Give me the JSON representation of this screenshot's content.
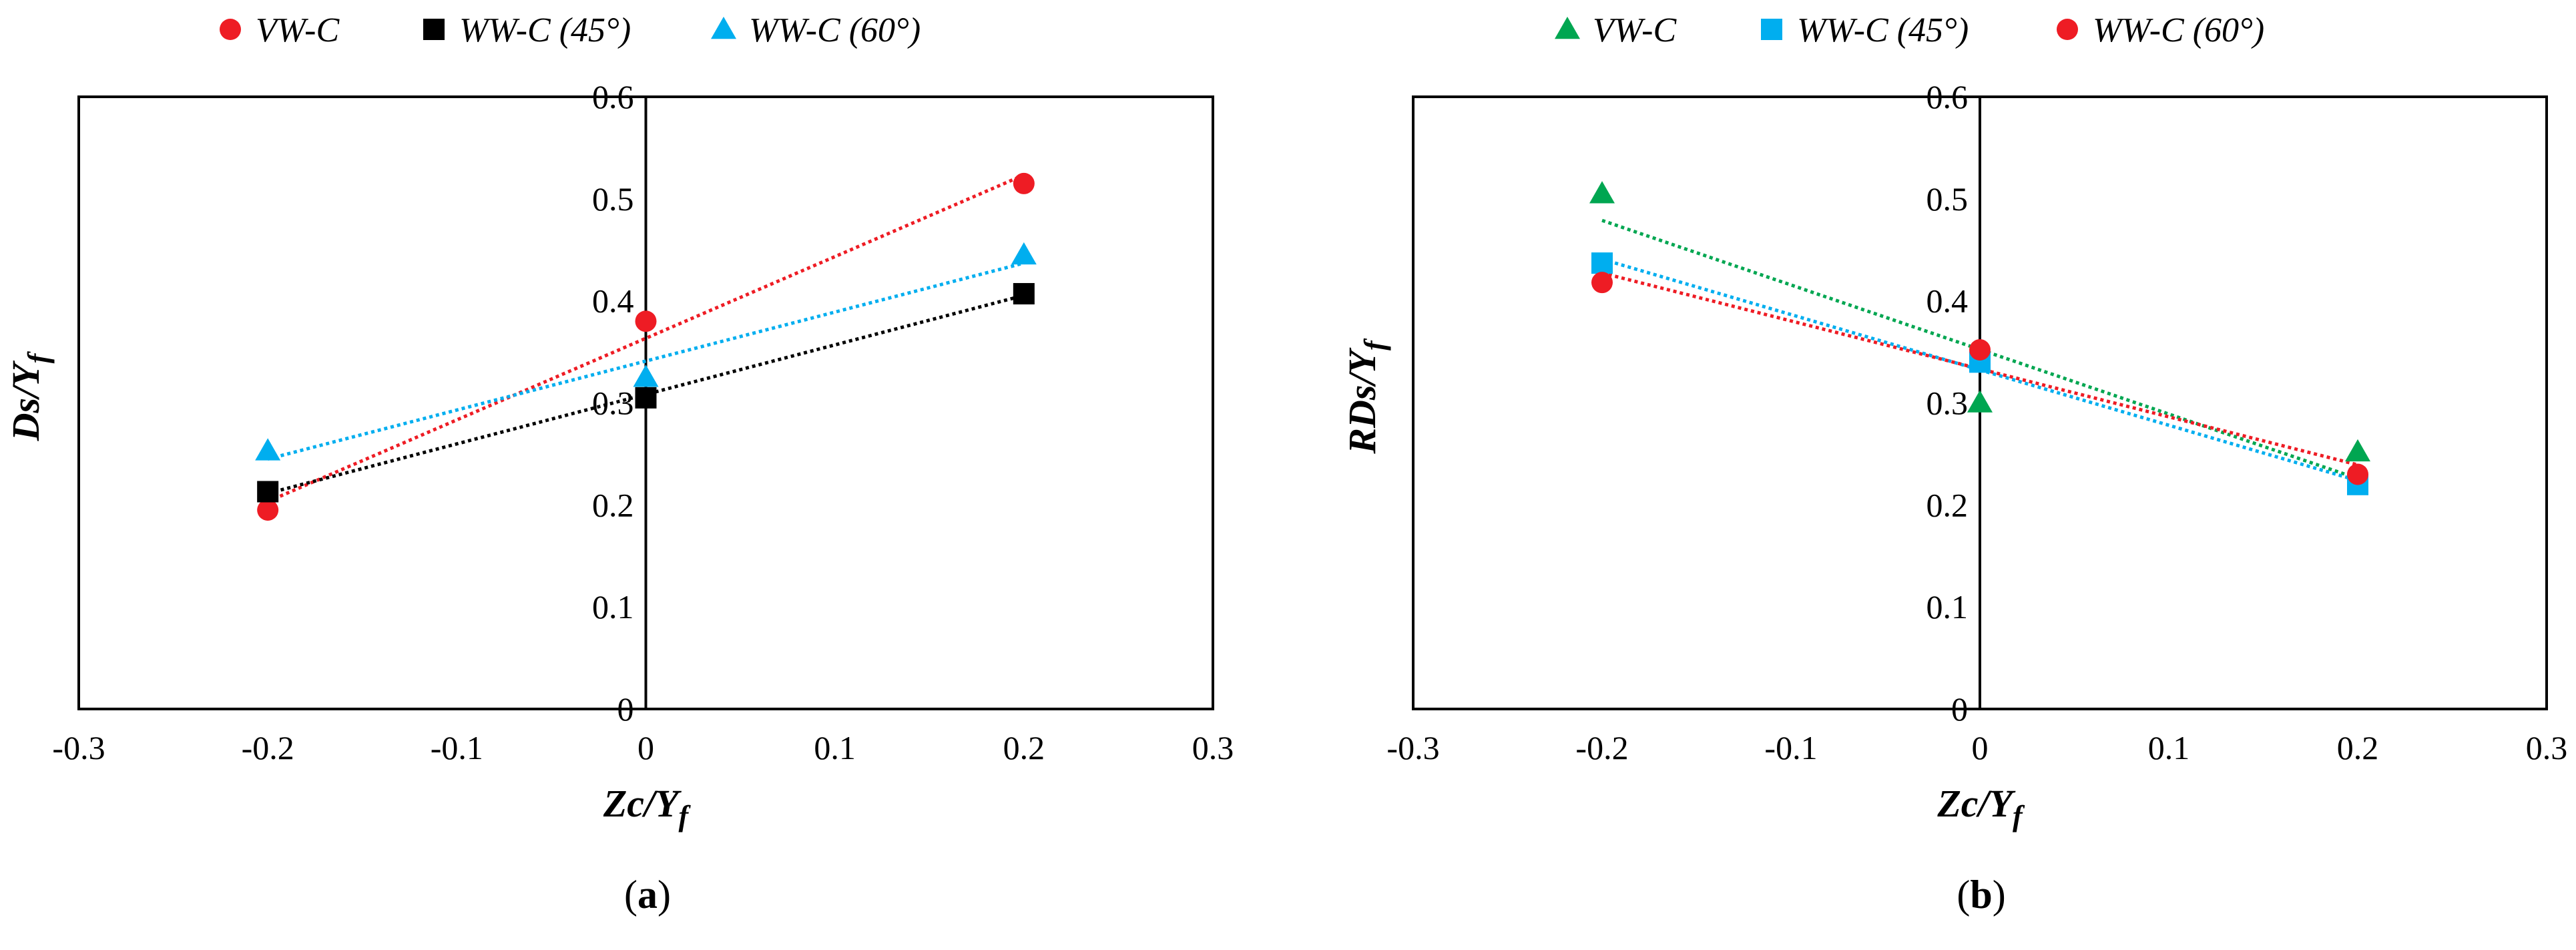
{
  "chart_data": [
    {
      "type": "scatter",
      "trendlines": "linear, dotted",
      "panel_label": {
        "open": "(",
        "letter": "a",
        "close": ")"
      },
      "xlabel": {
        "main": "Zc/Y",
        "sub": "f"
      },
      "ylabel": {
        "main": "Ds/Y",
        "sub": "f"
      },
      "xlim": [
        -0.3,
        0.3
      ],
      "ylim": [
        0,
        0.6
      ],
      "x_ticks": [
        "-0.3",
        "-0.2",
        "-0.1",
        "0",
        "0.1",
        "0.2",
        "0.3"
      ],
      "y_ticks": [
        "0",
        "0.1",
        "0.2",
        "0.3",
        "0.4",
        "0.5",
        "0.6"
      ],
      "legend_position": "top",
      "series": [
        {
          "name": "VW-C",
          "marker": "circle",
          "color": "#ee1c24",
          "x": [
            -0.2,
            0,
            0.2
          ],
          "y": [
            0.195,
            0.38,
            0.515
          ]
        },
        {
          "name": "WW-C (45°)",
          "marker": "square",
          "color": "#000000",
          "x": [
            -0.2,
            0,
            0.2
          ],
          "y": [
            0.213,
            0.305,
            0.407
          ]
        },
        {
          "name": "WW-C (60°)",
          "marker": "triangle",
          "color": "#00aeef",
          "x": [
            -0.2,
            0,
            0.2
          ],
          "y": [
            0.253,
            0.325,
            0.445
          ]
        }
      ]
    },
    {
      "type": "scatter",
      "trendlines": "linear, dotted",
      "panel_label": {
        "open": "(",
        "letter": "b",
        "close": ")"
      },
      "xlabel": {
        "main": "Zc/Y",
        "sub": "f"
      },
      "ylabel": {
        "main": "RDs/Y",
        "sub": "f"
      },
      "xlim": [
        -0.3,
        0.3
      ],
      "ylim": [
        0,
        0.6
      ],
      "x_ticks": [
        "-0.3",
        "-0.2",
        "-0.1",
        "0",
        "0.1",
        "0.2",
        "0.3"
      ],
      "y_ticks": [
        "0",
        "0.1",
        "0.2",
        "0.3",
        "0.4",
        "0.5",
        "0.6"
      ],
      "legend_position": "top",
      "series": [
        {
          "name": "VW-C",
          "marker": "triangle",
          "color": "#00a651",
          "x": [
            -0.2,
            0,
            0.2
          ],
          "y": [
            0.505,
            0.3,
            0.252
          ]
        },
        {
          "name": "WW-C (45°)",
          "marker": "square",
          "color": "#00aeef",
          "x": [
            -0.2,
            0,
            0.2
          ],
          "y": [
            0.437,
            0.34,
            0.22
          ]
        },
        {
          "name": "WW-C (60°)",
          "marker": "circle",
          "color": "#ee1c24",
          "x": [
            -0.2,
            0,
            0.2
          ],
          "y": [
            0.418,
            0.352,
            0.23
          ]
        }
      ]
    }
  ]
}
